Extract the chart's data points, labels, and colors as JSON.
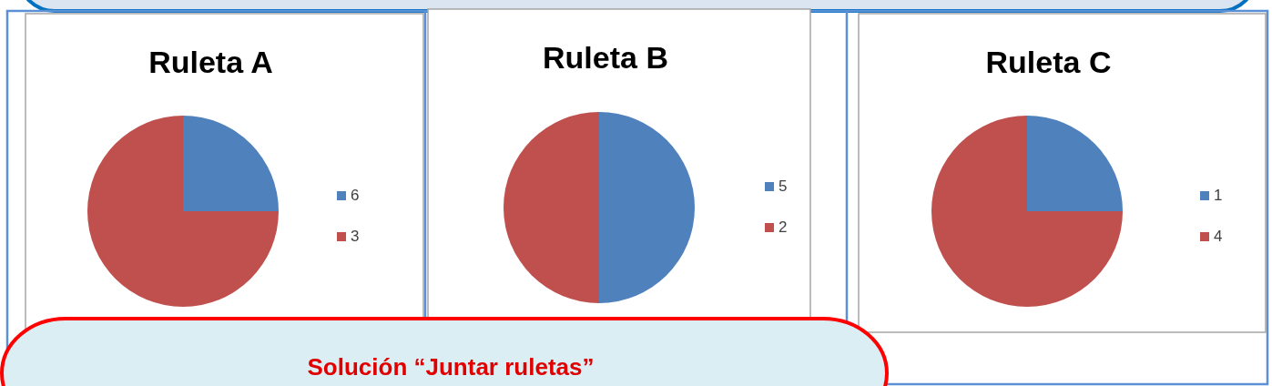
{
  "chart_data": [
    {
      "type": "pie",
      "title": "Ruleta A",
      "categories": [
        "6",
        "3"
      ],
      "values": [
        25,
        75
      ],
      "colors": [
        "#4f81bd",
        "#c0504d"
      ],
      "legend": "right",
      "annotations": [
        "Solución “Juntar ruletas”"
      ]
    },
    {
      "type": "pie",
      "title": "Ruleta B",
      "categories": [
        "5",
        "2"
      ],
      "values": [
        50,
        50
      ],
      "colors": [
        "#4f81bd",
        "#c0504d"
      ],
      "legend": "right"
    },
    {
      "type": "pie",
      "title": "Ruleta C",
      "categories": [
        "1",
        "4"
      ],
      "values": [
        25,
        75
      ],
      "colors": [
        "#4f81bd",
        "#c0504d"
      ],
      "legend": "right"
    }
  ]
}
